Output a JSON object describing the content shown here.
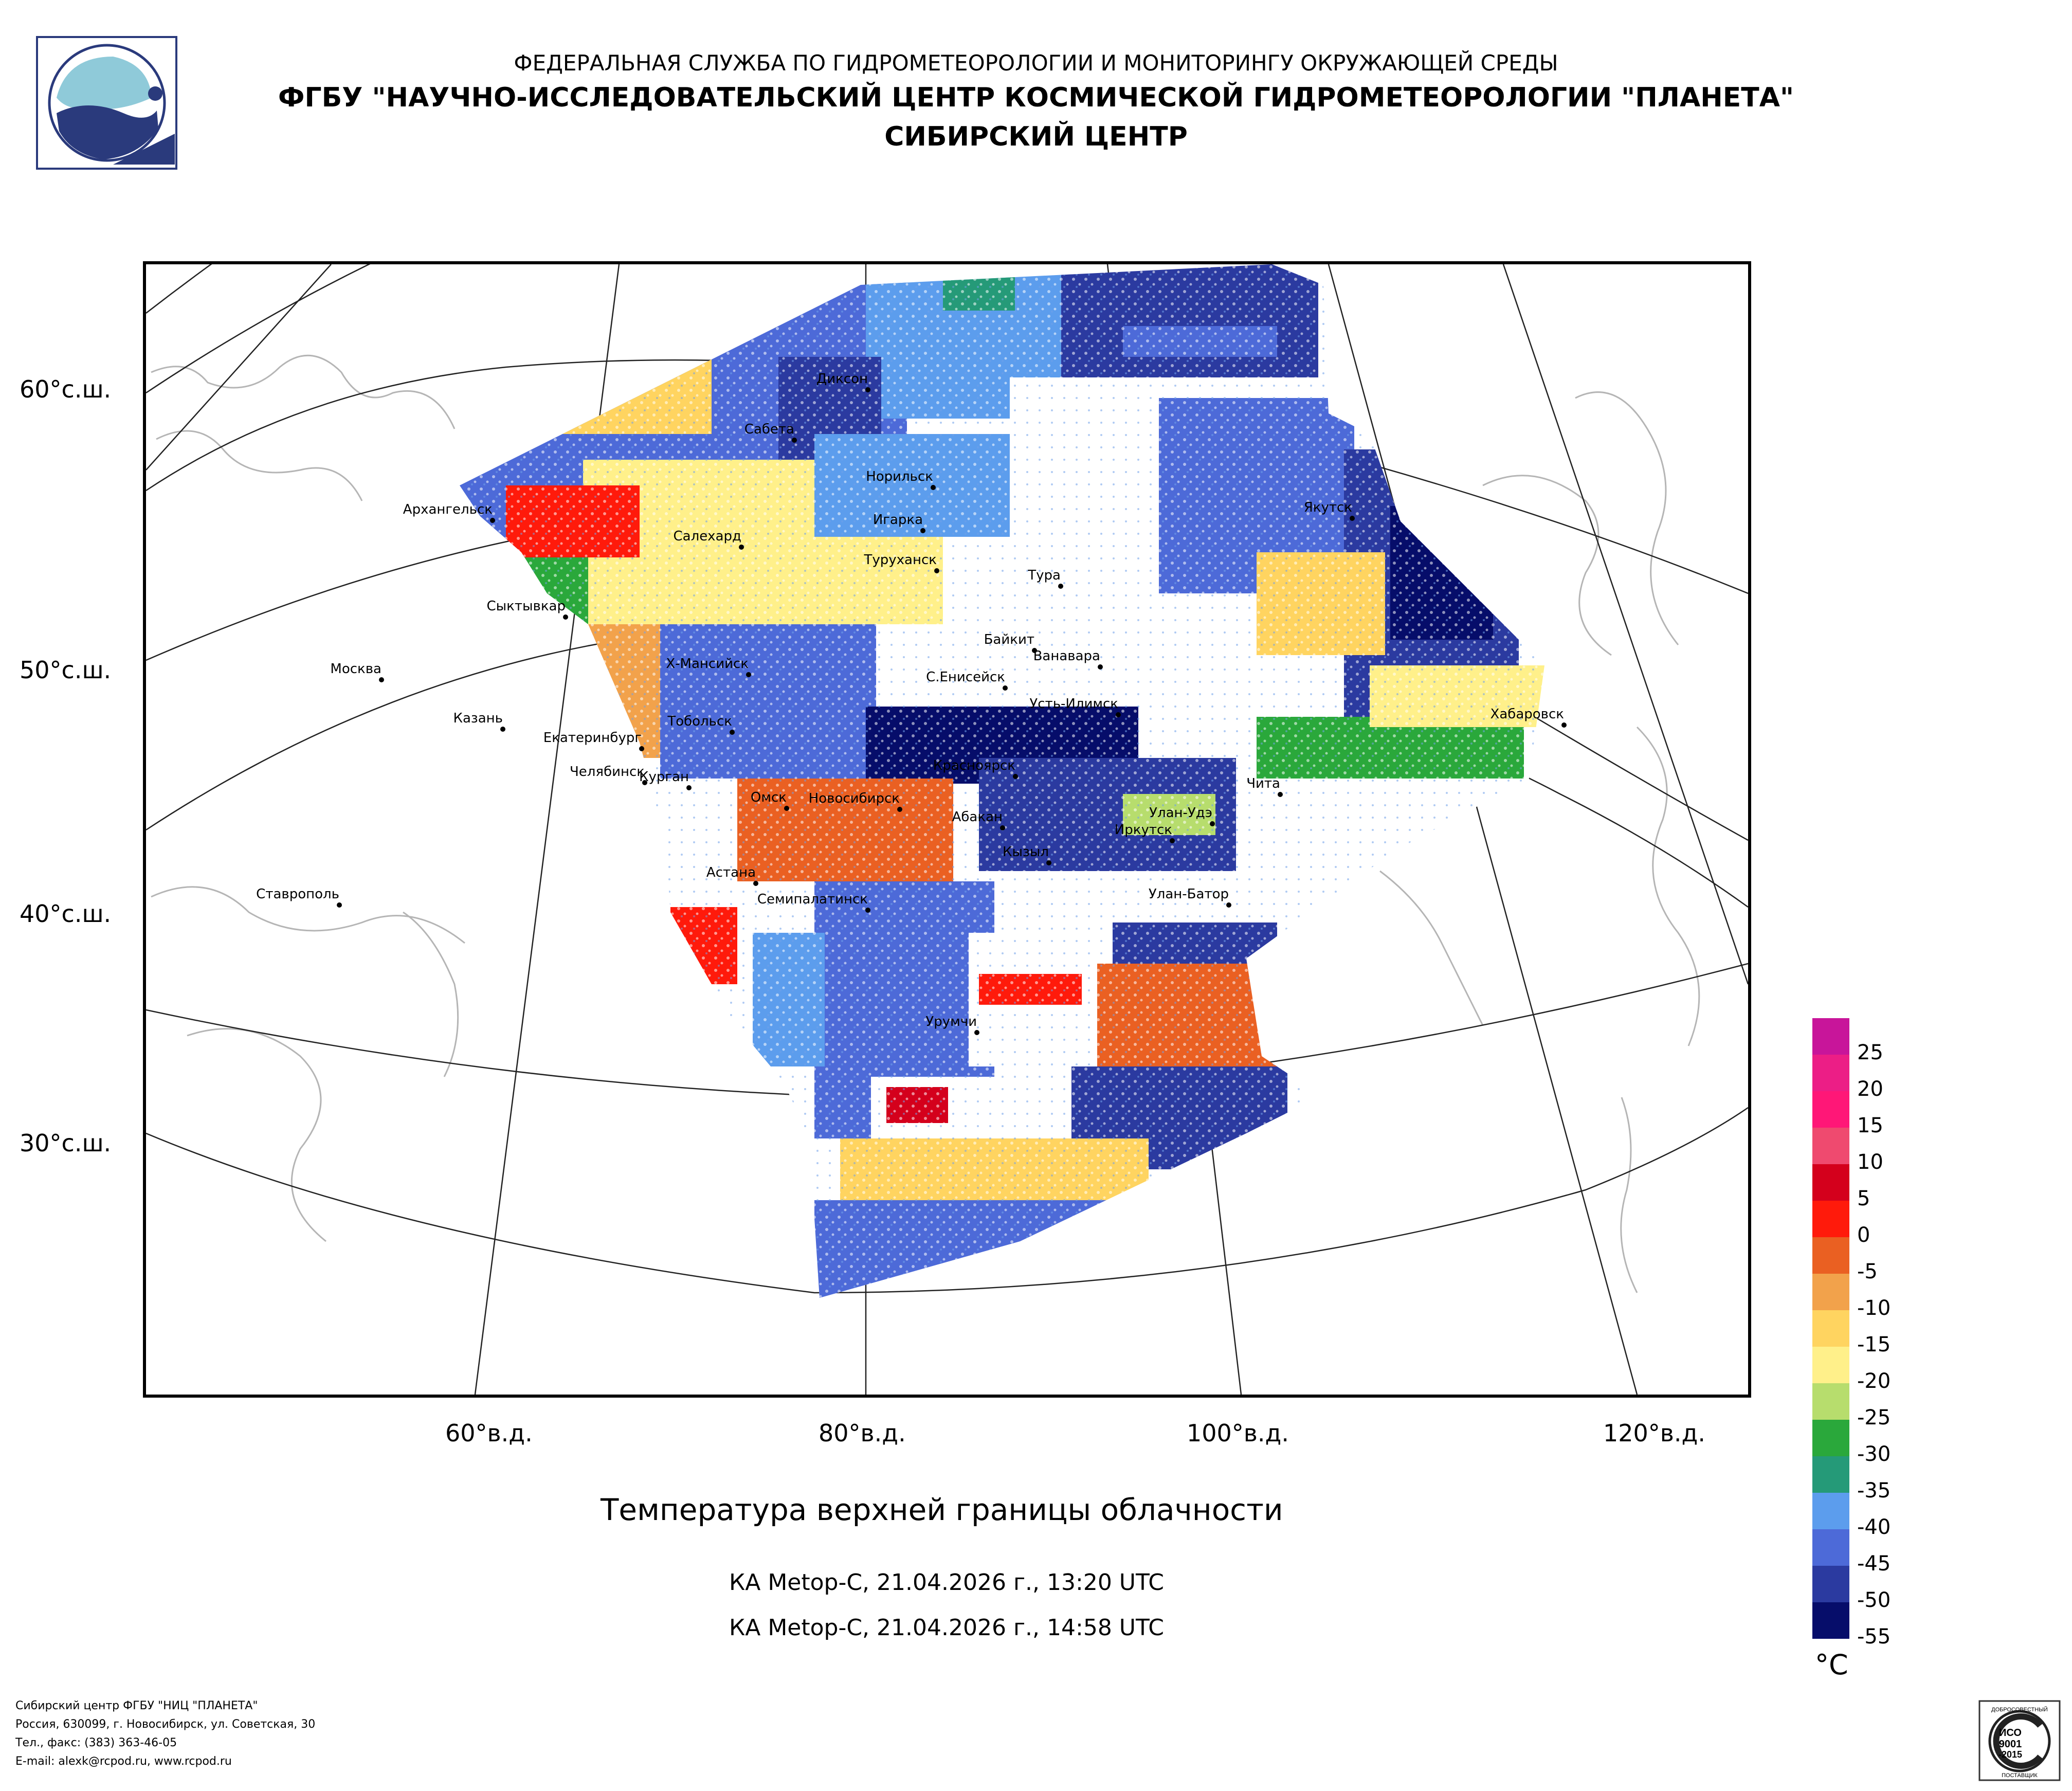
{
  "header": {
    "line1": "ФЕДЕРАЛЬНАЯ СЛУЖБА ПО ГИДРОМЕТЕОРОЛОГИИ И МОНИТОРИНГУ ОКРУЖАЮЩЕЙ СРЕДЫ",
    "line2": "ФГБУ \"НАУЧНО-ИССЛЕДОВАТЕЛЬСКИЙ ЦЕНТР КОСМИЧЕСКОЙ ГИДРОМЕТЕОРОЛОГИИ \"ПЛАНЕТА\"",
    "line3": "СИБИРСКИЙ ЦЕНТР"
  },
  "map": {
    "lat_labels": [
      "60°с.ш.",
      "50°с.ш.",
      "40°с.ш.",
      "30°с.ш."
    ],
    "lon_labels": [
      "60°в.д.",
      "80°в.д.",
      "100°в.д.",
      "120°в.д."
    ],
    "cities": [
      "Диксон",
      "Сабета",
      "Норильск",
      "Игарка",
      "Архангельск",
      "Салехард",
      "Туруханск",
      "Тура",
      "Якутск",
      "Сыктывкар",
      "Байкит",
      "Ванавара",
      "Москва",
      "Х-Мансийск",
      "С.Енисейск",
      "Усть-Илимск",
      "Казань",
      "Тобольск",
      "Екатеринбург",
      "Хабаровск",
      "Челябинск",
      "Курган",
      "Красноярск",
      "Чита",
      "Омск",
      "Новосибирск",
      "Абакан",
      "Улан-Удэ",
      "Иркутск",
      "Кызыл",
      "Астана",
      "Семипалатинск",
      "Улан-Батор",
      "Ставрополь",
      "Урумчи"
    ]
  },
  "caption": {
    "title": "Температура верхней границы облачности",
    "pass1": "КА Metop-C, 21.04.2026 г., 13:20 UTC",
    "pass2": "КА Metop-C, 21.04.2026 г., 14:58 UTC"
  },
  "legend": {
    "unit": "°C",
    "labels": [
      "25",
      "20",
      "15",
      "10",
      "5",
      "0",
      "-5",
      "-10",
      "-15",
      "-20",
      "-25",
      "-30",
      "-35",
      "-40",
      "-45",
      "-50",
      "-55"
    ],
    "colors": [
      "#c8159a",
      "#ec1e86",
      "#ff1777",
      "#ef4a6f",
      "#d4001c",
      "#ff1a0b",
      "#ea6022",
      "#f2a24b",
      "#ffd460",
      "#fff08a",
      "#b7dd6d",
      "#2aa83b",
      "#259a78",
      "#5c9ded",
      "#4d6ad8",
      "#2b3aa0",
      "#060d6a"
    ]
  },
  "footer": {
    "line1": "Сибирский центр ФГБУ \"НИЦ \"ПЛАНЕТА\"",
    "line2": "Россия, 630099, г. Новосибирск, ул. Советская, 30",
    "line3": "Тел., факс: (383) 363-46-05",
    "line4": "E-mail: alexk@rcpod.ru, www.rcpod.ru"
  },
  "iso_badge": {
    "top": "ДОБРОСОВЕСТНЫЙ",
    "mid1": "ИСО",
    "mid2": "9001",
    "mid3": "-2015",
    "bottom": "ПОСТАВЩИК"
  }
}
